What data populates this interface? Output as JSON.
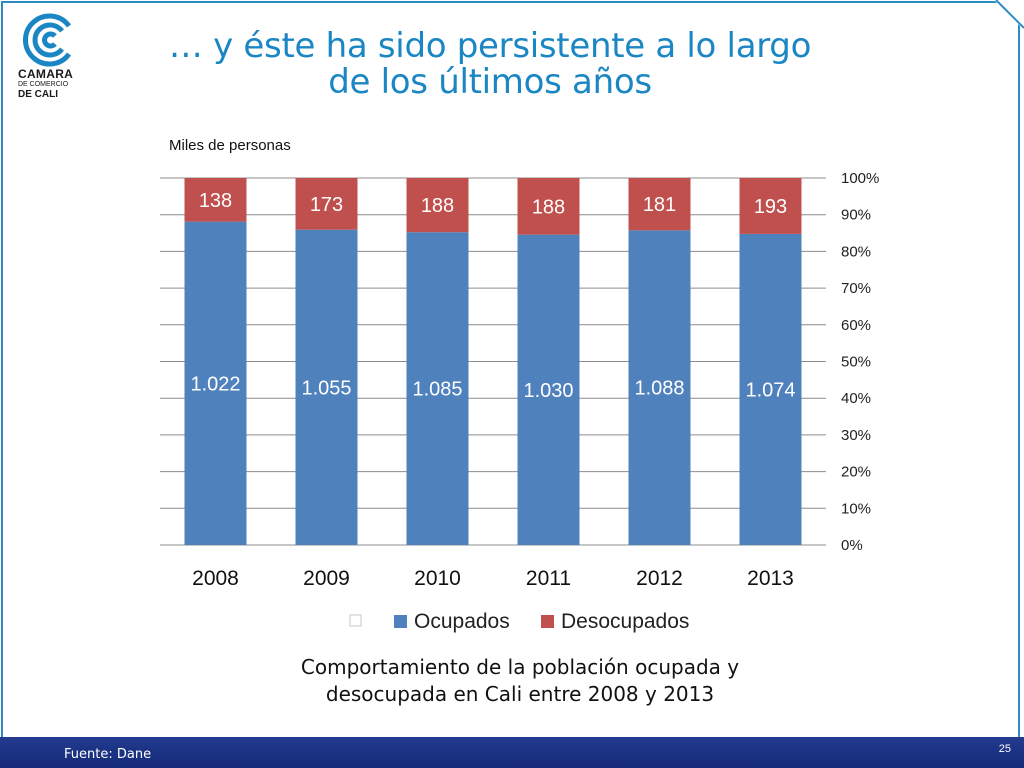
{
  "logo": {
    "line1": "CAMARA",
    "line2": "DE COMERCIO",
    "line3": "DE CALI"
  },
  "title": {
    "line1": "… y éste ha sido persistente a lo largo",
    "line2": "de los últimos años"
  },
  "unit_label": "Miles de personas",
  "caption": {
    "line1": "Comportamiento de la población ocupada y",
    "line2": "desocupada en Cali entre 2008 y 2013"
  },
  "footer": {
    "source": "Fuente: Dane",
    "page_number": "25"
  },
  "colors": {
    "ocupados": "#4f81bd",
    "desocupados": "#c0504d",
    "frame": "#2d8bc2",
    "title": "#1a86c4",
    "footer": "#1b3282"
  },
  "chart_data": {
    "type": "bar",
    "stacked": "percent",
    "categories": [
      "2008",
      "2009",
      "2010",
      "2011",
      "2012",
      "2013"
    ],
    "series": [
      {
        "name": "Ocupados",
        "values": [
          1022,
          1055,
          1085,
          1030,
          1088,
          1074
        ],
        "labels": [
          "1.022",
          "1.055",
          "1.085",
          "1.030",
          "1.088",
          "1.074"
        ],
        "color": "#4f81bd"
      },
      {
        "name": "Desocupados",
        "values": [
          138,
          173,
          188,
          188,
          181,
          193
        ],
        "labels": [
          "138",
          "173",
          "188",
          "188",
          "181",
          "193"
        ],
        "color": "#c0504d"
      }
    ],
    "legend_entries": [
      "",
      "Ocupados",
      "Desocupados"
    ],
    "y_ticks": [
      "0%",
      "10%",
      "20%",
      "30%",
      "40%",
      "50%",
      "60%",
      "70%",
      "80%",
      "90%",
      "100%"
    ],
    "ylim": [
      0,
      100
    ],
    "y_axis_side": "right",
    "grid": true,
    "legend_position": "bottom"
  }
}
